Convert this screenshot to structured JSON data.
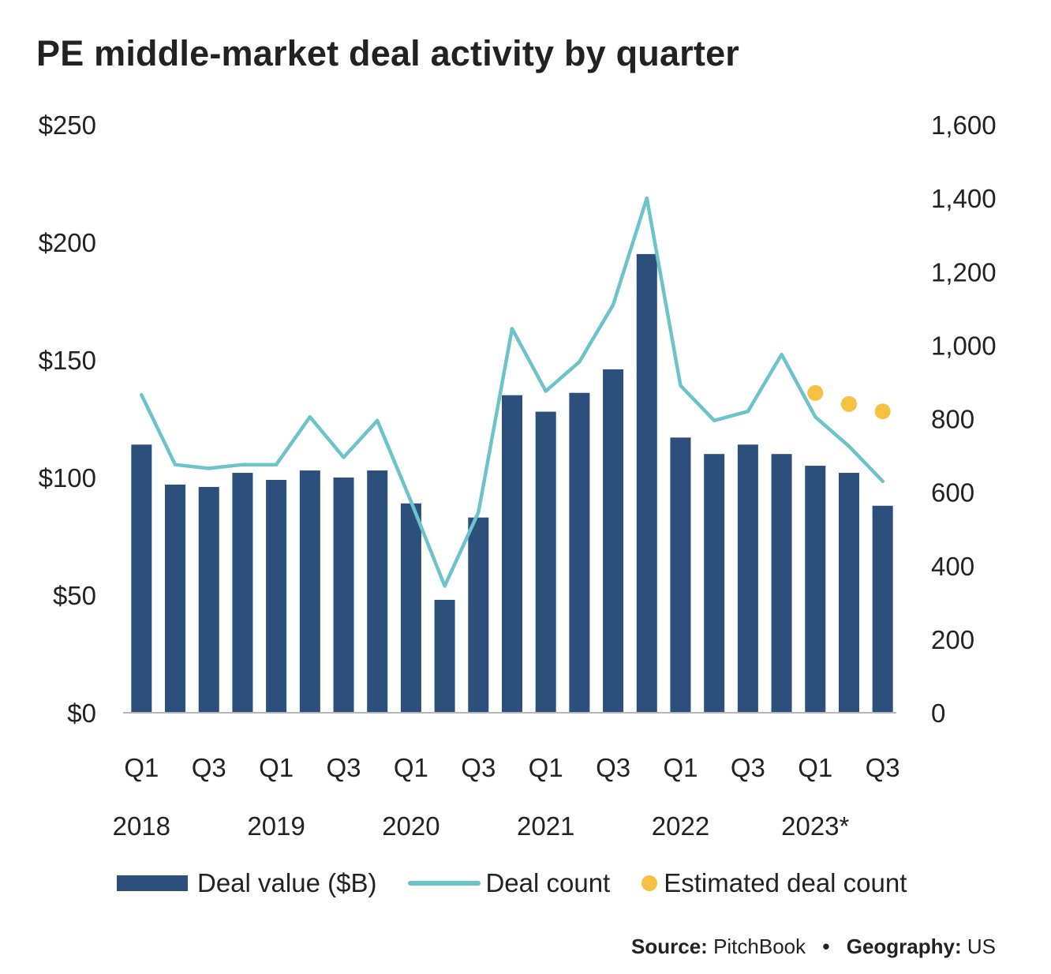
{
  "title": "PE middle-market deal activity by quarter",
  "colors": {
    "bar": "#2c4f7c",
    "line": "#6cc3c9",
    "estimate": "#f5c142",
    "baseline": "#b5b5b5",
    "text": "#222222"
  },
  "chart_data": {
    "type": "bar+line",
    "categories": [
      "Q1 2018",
      "Q2 2018",
      "Q3 2018",
      "Q4 2018",
      "Q1 2019",
      "Q2 2019",
      "Q3 2019",
      "Q4 2019",
      "Q1 2020",
      "Q2 2020",
      "Q3 2020",
      "Q4 2020",
      "Q1 2021",
      "Q2 2021",
      "Q3 2021",
      "Q4 2021",
      "Q1 2022",
      "Q2 2022",
      "Q3 2022",
      "Q4 2022",
      "Q1 2023",
      "Q2 2023",
      "Q3 2023"
    ],
    "series": [
      {
        "name": "Deal value ($B)",
        "type": "bar",
        "axis": "left",
        "values": [
          114,
          97,
          96,
          102,
          99,
          103,
          100,
          103,
          89,
          48,
          83,
          135,
          128,
          136,
          146,
          195,
          117,
          110,
          114,
          110,
          105,
          102,
          88
        ]
      },
      {
        "name": "Deal count",
        "type": "line",
        "axis": "right",
        "values": [
          865,
          675,
          665,
          675,
          675,
          805,
          695,
          795,
          575,
          345,
          545,
          1045,
          875,
          955,
          1110,
          1400,
          890,
          795,
          820,
          975,
          805,
          725,
          630
        ]
      },
      {
        "name": "Estimated deal count",
        "type": "scatter",
        "axis": "right",
        "points": [
          {
            "category": "Q1 2023",
            "value": 870
          },
          {
            "category": "Q2 2023",
            "value": 840
          },
          {
            "category": "Q3 2023",
            "value": 820
          }
        ]
      }
    ],
    "y_left": {
      "min": 0,
      "max": 250,
      "ticks": [
        0,
        50,
        100,
        150,
        200,
        250
      ],
      "tick_labels": [
        "$0",
        "$50",
        "$100",
        "$150",
        "$200",
        "$250"
      ]
    },
    "y_right": {
      "min": 0,
      "max": 1600,
      "ticks": [
        0,
        200,
        400,
        600,
        800,
        1000,
        1200,
        1400,
        1600
      ],
      "tick_labels": [
        "0",
        "200",
        "400",
        "600",
        "800",
        "1,000",
        "1,200",
        "1,400",
        "1,600"
      ]
    },
    "x_tick_labels": [
      {
        "index": 0,
        "label": "Q1"
      },
      {
        "index": 2,
        "label": "Q3"
      },
      {
        "index": 4,
        "label": "Q1"
      },
      {
        "index": 6,
        "label": "Q3"
      },
      {
        "index": 8,
        "label": "Q1"
      },
      {
        "index": 10,
        "label": "Q3"
      },
      {
        "index": 12,
        "label": "Q1"
      },
      {
        "index": 14,
        "label": "Q3"
      },
      {
        "index": 16,
        "label": "Q1"
      },
      {
        "index": 18,
        "label": "Q3"
      },
      {
        "index": 20,
        "label": "Q1"
      },
      {
        "index": 22,
        "label": "Q3"
      }
    ],
    "year_labels": [
      {
        "index": 0,
        "label": "2018"
      },
      {
        "index": 4,
        "label": "2019"
      },
      {
        "index": 8,
        "label": "2020"
      },
      {
        "index": 12,
        "label": "2021"
      },
      {
        "index": 16,
        "label": "2022"
      },
      {
        "index": 20,
        "label": "2023*"
      }
    ],
    "legend": [
      "Deal value ($B)",
      "Deal count",
      "Estimated deal count"
    ],
    "grid": false
  },
  "source": {
    "source_label": "Source:",
    "source_value": "PitchBook",
    "separator": "•",
    "geo_label": "Geography:",
    "geo_value": "US"
  }
}
